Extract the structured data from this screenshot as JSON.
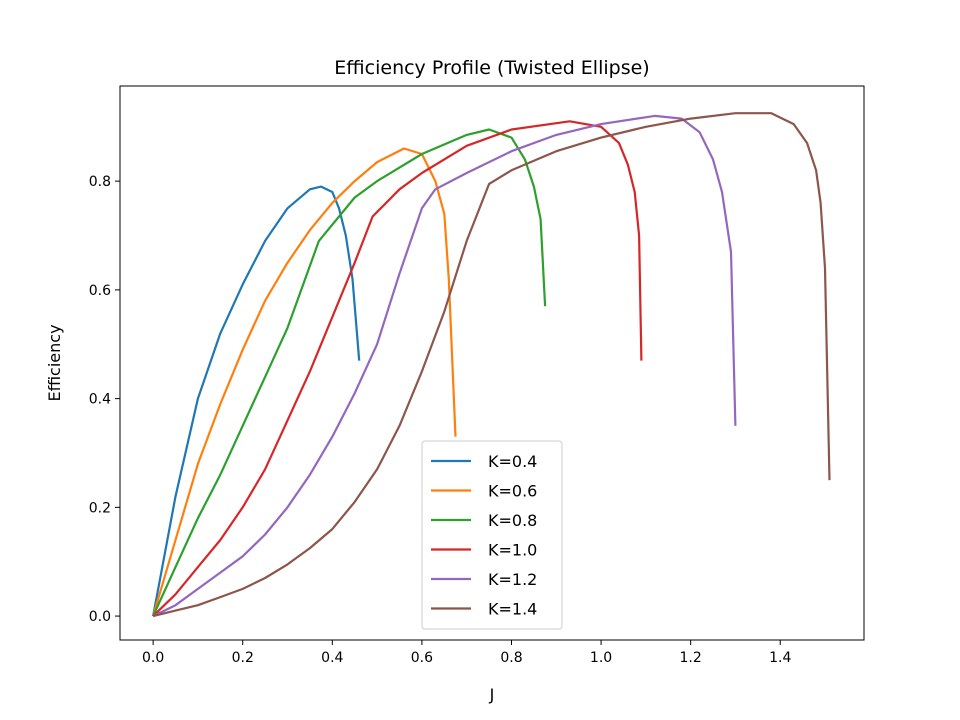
{
  "chart_data": {
    "type": "line",
    "title": "Efficiency Profile (Twisted Ellipse)",
    "xlabel": "J",
    "ylabel": "Efficiency",
    "xlim": [
      -0.074,
      1.587
    ],
    "ylim": [
      -0.044,
      0.975
    ],
    "xticks": [
      "0.0",
      "0.2",
      "0.4",
      "0.6",
      "0.8",
      "1.0",
      "1.2",
      "1.4"
    ],
    "yticks": [
      "0.0",
      "0.2",
      "0.4",
      "0.6",
      "0.8"
    ],
    "grid": false,
    "legend_position": "lower-center",
    "series": [
      {
        "name": "K=0.4",
        "color": "#1f77b4",
        "x": [
          0,
          0.05,
          0.1,
          0.15,
          0.2,
          0.25,
          0.3,
          0.35,
          0.375,
          0.4,
          0.415,
          0.43,
          0.445,
          0.46
        ],
        "y": [
          0,
          0.22,
          0.4,
          0.52,
          0.61,
          0.69,
          0.75,
          0.785,
          0.79,
          0.78,
          0.75,
          0.7,
          0.62,
          0.47
        ]
      },
      {
        "name": "K=0.6",
        "color": "#ff7f0e",
        "x": [
          0,
          0.05,
          0.1,
          0.15,
          0.2,
          0.25,
          0.3,
          0.35,
          0.4,
          0.45,
          0.5,
          0.56,
          0.6,
          0.63,
          0.65,
          0.66,
          0.675
        ],
        "y": [
          0,
          0.14,
          0.28,
          0.39,
          0.49,
          0.58,
          0.65,
          0.71,
          0.76,
          0.8,
          0.835,
          0.86,
          0.85,
          0.8,
          0.74,
          0.62,
          0.33
        ]
      },
      {
        "name": "K=0.8",
        "color": "#2ca02c",
        "x": [
          0,
          0.05,
          0.1,
          0.15,
          0.2,
          0.25,
          0.3,
          0.37,
          0.45,
          0.5,
          0.6,
          0.7,
          0.75,
          0.8,
          0.83,
          0.85,
          0.865,
          0.875
        ],
        "y": [
          0,
          0.09,
          0.18,
          0.26,
          0.35,
          0.44,
          0.53,
          0.69,
          0.77,
          0.8,
          0.85,
          0.885,
          0.895,
          0.88,
          0.84,
          0.79,
          0.73,
          0.57
        ]
      },
      {
        "name": "K=1.0",
        "color": "#d62728",
        "x": [
          0,
          0.05,
          0.1,
          0.15,
          0.2,
          0.25,
          0.3,
          0.35,
          0.4,
          0.45,
          0.49,
          0.55,
          0.6,
          0.7,
          0.8,
          0.93,
          1.0,
          1.04,
          1.06,
          1.075,
          1.085,
          1.09
        ],
        "y": [
          0,
          0.04,
          0.09,
          0.14,
          0.2,
          0.27,
          0.36,
          0.45,
          0.55,
          0.65,
          0.735,
          0.785,
          0.815,
          0.865,
          0.895,
          0.91,
          0.9,
          0.87,
          0.83,
          0.78,
          0.7,
          0.47
        ]
      },
      {
        "name": "K=1.2",
        "color": "#9467bd",
        "x": [
          0,
          0.05,
          0.1,
          0.15,
          0.2,
          0.25,
          0.3,
          0.35,
          0.4,
          0.45,
          0.5,
          0.55,
          0.6,
          0.63,
          0.7,
          0.8,
          0.9,
          1.0,
          1.12,
          1.18,
          1.22,
          1.25,
          1.27,
          1.29,
          1.3
        ],
        "y": [
          0,
          0.02,
          0.05,
          0.08,
          0.11,
          0.15,
          0.2,
          0.26,
          0.33,
          0.41,
          0.5,
          0.63,
          0.75,
          0.785,
          0.815,
          0.855,
          0.885,
          0.905,
          0.92,
          0.915,
          0.89,
          0.84,
          0.78,
          0.67,
          0.35
        ]
      },
      {
        "name": "K=1.4",
        "color": "#8c564b",
        "x": [
          0,
          0.05,
          0.1,
          0.15,
          0.2,
          0.25,
          0.3,
          0.35,
          0.4,
          0.45,
          0.5,
          0.55,
          0.6,
          0.65,
          0.7,
          0.75,
          0.8,
          0.9,
          1.0,
          1.1,
          1.2,
          1.3,
          1.38,
          1.43,
          1.46,
          1.48,
          1.49,
          1.5,
          1.51
        ],
        "y": [
          0,
          0.01,
          0.02,
          0.035,
          0.05,
          0.07,
          0.095,
          0.125,
          0.16,
          0.21,
          0.27,
          0.35,
          0.45,
          0.56,
          0.69,
          0.795,
          0.82,
          0.855,
          0.88,
          0.9,
          0.915,
          0.925,
          0.925,
          0.905,
          0.87,
          0.82,
          0.76,
          0.64,
          0.25
        ]
      }
    ]
  }
}
